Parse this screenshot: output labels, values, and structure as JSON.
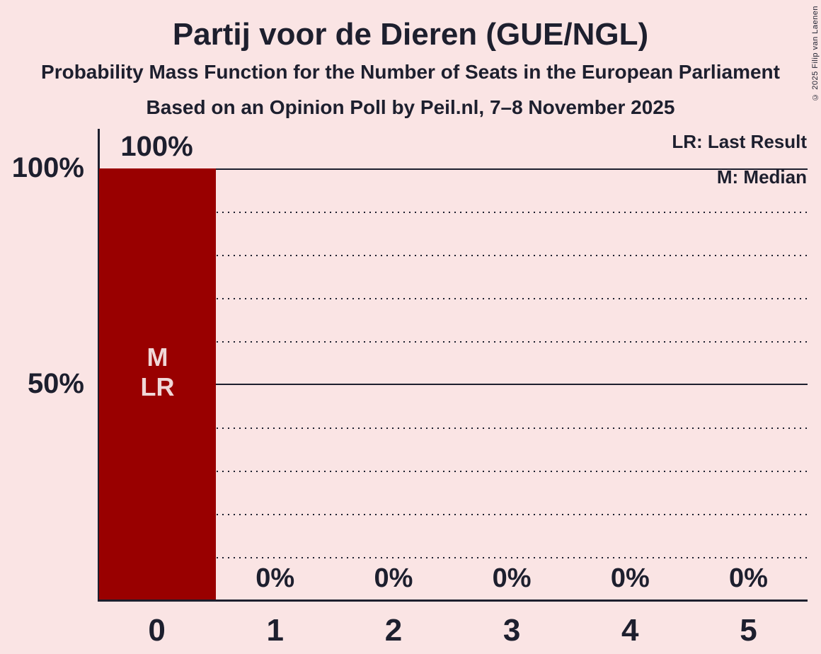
{
  "header": {
    "title": "Partij voor de Dieren (GUE/NGL)",
    "subtitle": "Probability Mass Function for the Number of Seats in the European Parliament",
    "poll_info": "Based on an Opinion Poll by Peil.nl, 7–8 November 2025"
  },
  "copyright": "© 2025 Filip van Laenen",
  "legend": {
    "last_result": "LR: Last Result",
    "median": "M: Median"
  },
  "y_axis": {
    "labels": [
      "100%",
      "50%"
    ]
  },
  "x_axis": {
    "labels": [
      "0",
      "1",
      "2",
      "3",
      "4",
      "5"
    ]
  },
  "bar_markers": {
    "line1": "M",
    "line2": "LR"
  },
  "colors": {
    "background": "#fae4e4",
    "bar": "#990000",
    "text": "#1d1f2e",
    "bar_text": "#f0d7d7"
  },
  "chart_data": {
    "type": "bar",
    "title": "Partij voor de Dieren (GUE/NGL)",
    "subtitle": "Probability Mass Function for the Number of Seats in the European Parliament",
    "source_note": "Based on an Opinion Poll by Peil.nl, 7–8 November 2025",
    "categories": [
      0,
      1,
      2,
      3,
      4,
      5
    ],
    "values": [
      100,
      0,
      0,
      0,
      0,
      0
    ],
    "value_labels": [
      "100%",
      "0%",
      "0%",
      "0%",
      "0%",
      "0%"
    ],
    "ylim": [
      0,
      100
    ],
    "ytick_labels": [
      "50%",
      "100%"
    ],
    "gridlines_solid_pct": [
      50,
      100
    ],
    "gridlines_dotted_pct": [
      10,
      20,
      30,
      40,
      60,
      70,
      80,
      90
    ],
    "bar_color": "#990000",
    "annotations": [
      {
        "category": 0,
        "labels": [
          "M",
          "LR"
        ],
        "meanings": [
          "Median",
          "Last Result"
        ]
      }
    ],
    "legend": [
      "LR: Last Result",
      "M: Median"
    ],
    "legend_position": "top-right",
    "grid": "horizontal-only"
  }
}
